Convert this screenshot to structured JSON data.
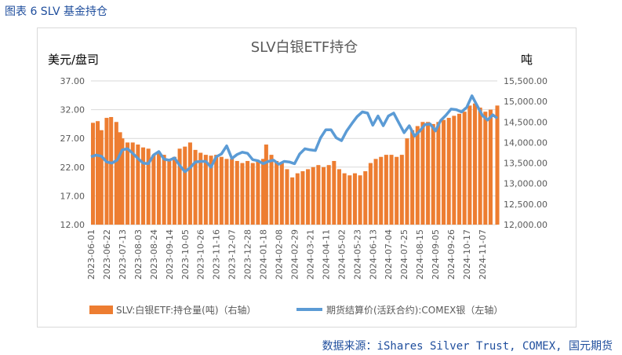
{
  "figure_label": "图表 6 SLV 基金持仓",
  "source_note": "数据来源：iShares Silver Trust, COMEX, 国元期货",
  "colors": {
    "bars": "#ed7d31",
    "line": "#5b9bd5",
    "grid": "#d9d9d9",
    "text": "#595959",
    "label_blue": "#1f4e9d"
  },
  "chart_data": {
    "type": "bar",
    "title": "SLV白银ETF持仓",
    "y_left_label": "美元/盘司",
    "y_right_label": "吨",
    "y_left_ticks": [
      "37.00",
      "32.00",
      "27.00",
      "22.00",
      "17.00",
      "12.00"
    ],
    "y_right_ticks": [
      "15,500.00",
      "15,000.00",
      "14,500.00",
      "14,000.00",
      "13,500.00",
      "13,000.00",
      "12,500.00",
      "12,000.00"
    ],
    "ylim_left": [
      12,
      37
    ],
    "ylim_right": [
      12000,
      15500
    ],
    "x_ticks": [
      "2023-06-01",
      "2023-06-22",
      "2023-07-13",
      "2023-08-03",
      "2023-08-24",
      "2023-09-14",
      "2023-10-05",
      "2023-10-26",
      "2023-11-16",
      "2023-12-07",
      "2023-12-28",
      "2024-01-18",
      "2024-02-08",
      "2024-02-29",
      "2024-03-21",
      "2024-04-11",
      "2024-05-02",
      "2024-05-23",
      "2024-06-13",
      "2024-07-04",
      "2024-07-25",
      "2024-08-15",
      "2024-09-05",
      "2024-09-26",
      "2024-10-17",
      "2024-11-07"
    ],
    "x_range": [
      "2023-06-01",
      "2024-11-27"
    ],
    "legend_position": "bottom",
    "series": [
      {
        "name": "SLV:白银ETF:持仓量(吨)（右轴）",
        "kind": "bar",
        "axis": "right",
        "points": [
          [
            "2023-06-01",
            14480
          ],
          [
            "2023-06-10",
            14520
          ],
          [
            "2023-06-15",
            14300
          ],
          [
            "2023-06-22",
            14600
          ],
          [
            "2023-06-28",
            14620
          ],
          [
            "2023-07-05",
            14500
          ],
          [
            "2023-07-10",
            14250
          ],
          [
            "2023-07-13",
            14100
          ],
          [
            "2023-07-20",
            14000
          ],
          [
            "2023-07-27",
            14000
          ],
          [
            "2023-08-03",
            13950
          ],
          [
            "2023-08-10",
            13880
          ],
          [
            "2023-08-17",
            13850
          ],
          [
            "2023-08-24",
            13700
          ],
          [
            "2023-08-31",
            13780
          ],
          [
            "2023-09-07",
            13700
          ],
          [
            "2023-09-14",
            13600
          ],
          [
            "2023-09-21",
            13650
          ],
          [
            "2023-09-28",
            13850
          ],
          [
            "2023-10-05",
            13900
          ],
          [
            "2023-10-12",
            14000
          ],
          [
            "2023-10-19",
            13820
          ],
          [
            "2023-10-26",
            13750
          ],
          [
            "2023-11-02",
            13700
          ],
          [
            "2023-11-09",
            13680
          ],
          [
            "2023-11-16",
            13700
          ],
          [
            "2023-11-23",
            13650
          ],
          [
            "2023-11-30",
            13600
          ],
          [
            "2023-12-07",
            13600
          ],
          [
            "2023-12-14",
            13550
          ],
          [
            "2023-12-21",
            13500
          ],
          [
            "2023-12-28",
            13550
          ],
          [
            "2024-01-04",
            13500
          ],
          [
            "2024-01-11",
            13550
          ],
          [
            "2024-01-18",
            13600
          ],
          [
            "2024-01-22",
            13950
          ],
          [
            "2024-01-29",
            13700
          ],
          [
            "2024-02-05",
            13550
          ],
          [
            "2024-02-12",
            13500
          ],
          [
            "2024-02-19",
            13350
          ],
          [
            "2024-02-26",
            13150
          ],
          [
            "2024-03-04",
            13250
          ],
          [
            "2024-03-11",
            13300
          ],
          [
            "2024-03-18",
            13350
          ],
          [
            "2024-03-25",
            13400
          ],
          [
            "2024-04-01",
            13450
          ],
          [
            "2024-04-08",
            13400
          ],
          [
            "2024-04-15",
            13450
          ],
          [
            "2024-04-22",
            13550
          ],
          [
            "2024-04-29",
            13350
          ],
          [
            "2024-05-06",
            13250
          ],
          [
            "2024-05-13",
            13200
          ],
          [
            "2024-05-20",
            13250
          ],
          [
            "2024-05-27",
            13200
          ],
          [
            "2024-06-03",
            13300
          ],
          [
            "2024-06-10",
            13500
          ],
          [
            "2024-06-17",
            13600
          ],
          [
            "2024-06-24",
            13650
          ],
          [
            "2024-07-01",
            13700
          ],
          [
            "2024-07-08",
            13700
          ],
          [
            "2024-07-15",
            13650
          ],
          [
            "2024-07-22",
            13700
          ],
          [
            "2024-07-29",
            14100
          ],
          [
            "2024-08-05",
            14300
          ],
          [
            "2024-08-12",
            14400
          ],
          [
            "2024-08-19",
            14500
          ],
          [
            "2024-08-26",
            14500
          ],
          [
            "2024-09-02",
            14450
          ],
          [
            "2024-09-09",
            14500
          ],
          [
            "2024-09-16",
            14550
          ],
          [
            "2024-09-23",
            14600
          ],
          [
            "2024-09-30",
            14650
          ],
          [
            "2024-10-07",
            14700
          ],
          [
            "2024-10-14",
            14750
          ],
          [
            "2024-10-21",
            14900
          ],
          [
            "2024-10-28",
            14950
          ],
          [
            "2024-11-04",
            14850
          ],
          [
            "2024-11-11",
            14750
          ],
          [
            "2024-11-18",
            14800
          ],
          [
            "2024-11-27",
            14900
          ]
        ]
      },
      {
        "name": "期货结算价(活跃合约):COMEX银（左轴）",
        "kind": "line",
        "axis": "left",
        "points": [
          [
            "2023-06-01",
            23.8
          ],
          [
            "2023-06-08",
            24.1
          ],
          [
            "2023-06-15",
            23.9
          ],
          [
            "2023-06-22",
            22.9
          ],
          [
            "2023-06-29",
            22.7
          ],
          [
            "2023-07-06",
            23.2
          ],
          [
            "2023-07-13",
            25.0
          ],
          [
            "2023-07-20",
            25.2
          ],
          [
            "2023-07-27",
            24.4
          ],
          [
            "2023-08-03",
            23.5
          ],
          [
            "2023-08-10",
            22.7
          ],
          [
            "2023-08-17",
            22.6
          ],
          [
            "2023-08-24",
            24.1
          ],
          [
            "2023-08-31",
            24.7
          ],
          [
            "2023-09-07",
            23.4
          ],
          [
            "2023-09-14",
            23.2
          ],
          [
            "2023-09-21",
            23.6
          ],
          [
            "2023-09-28",
            22.3
          ],
          [
            "2023-10-05",
            21.2
          ],
          [
            "2023-10-12",
            21.9
          ],
          [
            "2023-10-19",
            22.9
          ],
          [
            "2023-10-26",
            23.0
          ],
          [
            "2023-11-02",
            23.0
          ],
          [
            "2023-11-09",
            22.0
          ],
          [
            "2023-11-16",
            23.8
          ],
          [
            "2023-11-23",
            24.3
          ],
          [
            "2023-11-30",
            25.7
          ],
          [
            "2023-12-07",
            23.5
          ],
          [
            "2023-12-14",
            24.2
          ],
          [
            "2023-12-21",
            24.6
          ],
          [
            "2023-12-28",
            24.4
          ],
          [
            "2024-01-04",
            23.3
          ],
          [
            "2024-01-11",
            23.1
          ],
          [
            "2024-01-18",
            22.6
          ],
          [
            "2024-01-25",
            23.0
          ],
          [
            "2024-02-01",
            23.2
          ],
          [
            "2024-02-08",
            22.5
          ],
          [
            "2024-02-15",
            23.0
          ],
          [
            "2024-02-22",
            22.9
          ],
          [
            "2024-02-29",
            22.6
          ],
          [
            "2024-03-07",
            24.3
          ],
          [
            "2024-03-14",
            25.2
          ],
          [
            "2024-03-21",
            25.0
          ],
          [
            "2024-03-28",
            24.9
          ],
          [
            "2024-04-04",
            27.1
          ],
          [
            "2024-04-11",
            28.5
          ],
          [
            "2024-04-18",
            28.5
          ],
          [
            "2024-04-25",
            27.1
          ],
          [
            "2024-05-02",
            26.6
          ],
          [
            "2024-05-09",
            28.3
          ],
          [
            "2024-05-16",
            29.6
          ],
          [
            "2024-05-23",
            30.8
          ],
          [
            "2024-05-30",
            31.6
          ],
          [
            "2024-06-06",
            31.4
          ],
          [
            "2024-06-13",
            29.3
          ],
          [
            "2024-06-20",
            30.9
          ],
          [
            "2024-06-27",
            29.2
          ],
          [
            "2024-07-04",
            30.9
          ],
          [
            "2024-07-11",
            31.4
          ],
          [
            "2024-07-18",
            29.7
          ],
          [
            "2024-07-25",
            28.0
          ],
          [
            "2024-08-01",
            29.2
          ],
          [
            "2024-08-08",
            27.4
          ],
          [
            "2024-08-15",
            28.3
          ],
          [
            "2024-08-22",
            29.4
          ],
          [
            "2024-08-29",
            29.5
          ],
          [
            "2024-09-05",
            28.3
          ],
          [
            "2024-09-12",
            30.1
          ],
          [
            "2024-09-19",
            31.0
          ],
          [
            "2024-09-26",
            32.1
          ],
          [
            "2024-10-03",
            32.0
          ],
          [
            "2024-10-10",
            31.6
          ],
          [
            "2024-10-17",
            32.4
          ],
          [
            "2024-10-24",
            34.4
          ],
          [
            "2024-10-31",
            32.7
          ],
          [
            "2024-11-07",
            31.0
          ],
          [
            "2024-11-14",
            30.2
          ],
          [
            "2024-11-21",
            31.1
          ],
          [
            "2024-11-27",
            30.5
          ]
        ]
      }
    ]
  }
}
